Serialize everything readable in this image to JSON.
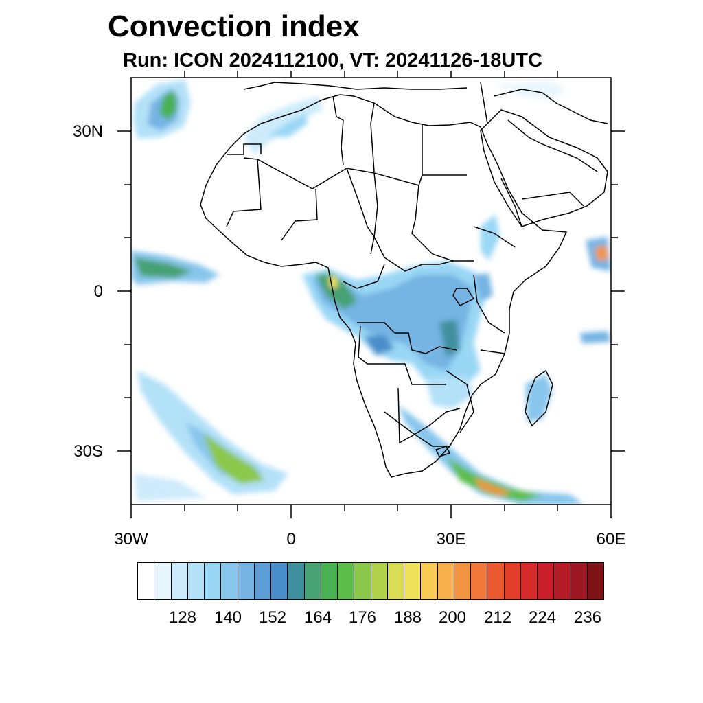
{
  "title": "Convection index",
  "subtitle": "Run: ICON 2024112100,  VT: 20241126-18UTC",
  "axes": {
    "lat_labels": [
      "30N",
      "0",
      "30S"
    ],
    "lon_labels": [
      "30W",
      "0",
      "30E",
      "60E"
    ]
  },
  "colorbar": {
    "labels": [
      "128",
      "140",
      "152",
      "164",
      "176",
      "188",
      "200",
      "212",
      "224",
      "236"
    ],
    "colors": [
      "#ffffff",
      "#e8f6fd",
      "#cdebfa",
      "#b3e1f8",
      "#9ad7f5",
      "#88c6ec",
      "#75b4e3",
      "#5e9ed6",
      "#4a8ec9",
      "#3f8f9e",
      "#47a173",
      "#49b152",
      "#5cbd4a",
      "#8cc84b",
      "#b2d24e",
      "#d8dd54",
      "#f0e15a",
      "#f8cb55",
      "#f6b04c",
      "#f39443",
      "#ef773a",
      "#e95a30",
      "#e23f2b",
      "#d72a2b",
      "#c81f2a",
      "#b41b27",
      "#9e1824",
      "#7e1416"
    ]
  },
  "legend_colors": {
    "land_border": "#000000",
    "ocean": "#ffffff"
  }
}
